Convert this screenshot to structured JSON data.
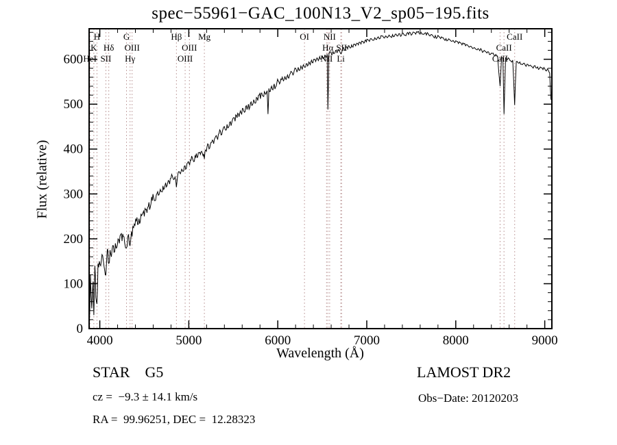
{
  "title": "spec−55961−GAC_100N13_V2_sp05−195.fits",
  "footer": {
    "class_label": "STAR    G5",
    "survey": "LAMOST DR2",
    "cz": "cz =  −9.3 ± 14.1 km/s",
    "obs_date": "Obs−Date: 20120203",
    "ra_dec": "RA =  99.96251, DEC =  12.28323"
  },
  "chart_data": {
    "type": "line",
    "title": "spec−55961−GAC_100N13_V2_sp05−195.fits",
    "xlabel": "Wavelength (Å)",
    "ylabel": "Flux (relative)",
    "xlim": [
      3880,
      9080
    ],
    "ylim": [
      0,
      668
    ],
    "x_ticks": [
      4000,
      5000,
      6000,
      7000,
      8000,
      9000
    ],
    "y_ticks": [
      0,
      100,
      200,
      300,
      400,
      500,
      600
    ],
    "x_minor_step": 200,
    "y_minor_step": 20,
    "grid": false,
    "line_color": "#000000",
    "marker_line_color": "#b38989",
    "noise_profile": [
      {
        "until": 4600,
        "amp": 14
      },
      {
        "until": 6000,
        "amp": 8
      },
      {
        "until": 9999,
        "amp": 4
      }
    ],
    "line_markers": [
      {
        "label": "HeI",
        "wavelength": 3889,
        "row": 2
      },
      {
        "label": "K",
        "wavelength": 3933,
        "row": 1
      },
      {
        "label": "H",
        "wavelength": 3968,
        "row": 0
      },
      {
        "label": "SII",
        "wavelength": 4068,
        "row": 2
      },
      {
        "label": "Hδ",
        "wavelength": 4101,
        "row": 1
      },
      {
        "label": "G",
        "wavelength": 4300,
        "row": 0
      },
      {
        "label": "Hγ",
        "wavelength": 4340,
        "row": 2
      },
      {
        "label": "OIII",
        "wavelength": 4363,
        "row": 1
      },
      {
        "label": "Hβ",
        "wavelength": 4861,
        "row": 0
      },
      {
        "label": "OIII",
        "wavelength": 4959,
        "row": 2
      },
      {
        "label": "OIII",
        "wavelength": 5007,
        "row": 1
      },
      {
        "label": "Mg",
        "wavelength": 5175,
        "row": 0
      },
      {
        "label": "OI",
        "wavelength": 6300,
        "row": 0
      },
      {
        "label": "NII",
        "wavelength": 6548,
        "row": 2
      },
      {
        "label": "Hα",
        "wavelength": 6563,
        "row": 1
      },
      {
        "label": "NII",
        "wavelength": 6583,
        "row": 0
      },
      {
        "label": "Li",
        "wavelength": 6708,
        "row": 2
      },
      {
        "label": "SII",
        "wavelength": 6717,
        "row": 1
      },
      {
        "label": "CaII",
        "wavelength": 8498,
        "row": 2
      },
      {
        "label": "CaII",
        "wavelength": 8542,
        "row": 1
      },
      {
        "label": "CaII",
        "wavelength": 8662,
        "row": 0
      }
    ],
    "points": [
      [
        3882,
        8
      ],
      [
        3895,
        120
      ],
      [
        3910,
        45
      ],
      [
        3925,
        105
      ],
      [
        3933,
        30
      ],
      [
        3945,
        140
      ],
      [
        3955,
        70
      ],
      [
        3968,
        55
      ],
      [
        3980,
        145
      ],
      [
        3995,
        150
      ],
      [
        4010,
        140
      ],
      [
        4025,
        165
      ],
      [
        4040,
        150
      ],
      [
        4055,
        130
      ],
      [
        4068,
        120
      ],
      [
        4080,
        165
      ],
      [
        4090,
        175
      ],
      [
        4101,
        145
      ],
      [
        4115,
        175
      ],
      [
        4130,
        160
      ],
      [
        4145,
        185
      ],
      [
        4160,
        170
      ],
      [
        4175,
        190
      ],
      [
        4190,
        180
      ],
      [
        4205,
        200
      ],
      [
        4220,
        190
      ],
      [
        4235,
        210
      ],
      [
        4250,
        195
      ],
      [
        4265,
        205
      ],
      [
        4280,
        190
      ],
      [
        4300,
        180
      ],
      [
        4315,
        205
      ],
      [
        4330,
        195
      ],
      [
        4340,
        185
      ],
      [
        4355,
        215
      ],
      [
        4363,
        205
      ],
      [
        4380,
        225
      ],
      [
        4395,
        230
      ],
      [
        4410,
        240
      ],
      [
        4425,
        232
      ],
      [
        4440,
        245
      ],
      [
        4455,
        238
      ],
      [
        4470,
        252
      ],
      [
        4485,
        258
      ],
      [
        4500,
        250
      ],
      [
        4515,
        265
      ],
      [
        4530,
        258
      ],
      [
        4545,
        272
      ],
      [
        4560,
        265
      ],
      [
        4575,
        278
      ],
      [
        4590,
        285
      ],
      [
        4605,
        292
      ],
      [
        4620,
        285
      ],
      [
        4635,
        298
      ],
      [
        4650,
        305
      ],
      [
        4665,
        298
      ],
      [
        4680,
        310
      ],
      [
        4695,
        305
      ],
      [
        4710,
        318
      ],
      [
        4725,
        312
      ],
      [
        4740,
        325
      ],
      [
        4755,
        318
      ],
      [
        4770,
        330
      ],
      [
        4785,
        322
      ],
      [
        4800,
        335
      ],
      [
        4815,
        340
      ],
      [
        4830,
        332
      ],
      [
        4845,
        338
      ],
      [
        4861,
        315
      ],
      [
        4875,
        342
      ],
      [
        4890,
        350
      ],
      [
        4905,
        345
      ],
      [
        4920,
        355
      ],
      [
        4935,
        350
      ],
      [
        4950,
        362
      ],
      [
        4965,
        355
      ],
      [
        4980,
        368
      ],
      [
        4995,
        372
      ],
      [
        5010,
        365
      ],
      [
        5025,
        375
      ],
      [
        5040,
        380
      ],
      [
        5055,
        372
      ],
      [
        5070,
        385
      ],
      [
        5085,
        390
      ],
      [
        5100,
        382
      ],
      [
        5115,
        392
      ],
      [
        5130,
        388
      ],
      [
        5145,
        395
      ],
      [
        5160,
        385
      ],
      [
        5175,
        378
      ],
      [
        5190,
        398
      ],
      [
        5205,
        405
      ],
      [
        5220,
        410
      ],
      [
        5235,
        402
      ],
      [
        5250,
        415
      ],
      [
        5265,
        420
      ],
      [
        5280,
        412
      ],
      [
        5295,
        425
      ],
      [
        5310,
        430
      ],
      [
        5325,
        422
      ],
      [
        5340,
        435
      ],
      [
        5355,
        440
      ],
      [
        5370,
        432
      ],
      [
        5385,
        445
      ],
      [
        5400,
        450
      ],
      [
        5415,
        442
      ],
      [
        5430,
        455
      ],
      [
        5445,
        448
      ],
      [
        5460,
        460
      ],
      [
        5475,
        452
      ],
      [
        5490,
        465
      ],
      [
        5505,
        470
      ],
      [
        5520,
        462
      ],
      [
        5535,
        475
      ],
      [
        5550,
        480
      ],
      [
        5565,
        472
      ],
      [
        5580,
        485
      ],
      [
        5595,
        478
      ],
      [
        5610,
        490
      ],
      [
        5625,
        482
      ],
      [
        5640,
        495
      ],
      [
        5655,
        488
      ],
      [
        5670,
        500
      ],
      [
        5685,
        492
      ],
      [
        5700,
        505
      ],
      [
        5715,
        498
      ],
      [
        5730,
        510
      ],
      [
        5745,
        502
      ],
      [
        5760,
        515
      ],
      [
        5775,
        508
      ],
      [
        5790,
        520
      ],
      [
        5805,
        512
      ],
      [
        5820,
        525
      ],
      [
        5835,
        518
      ],
      [
        5850,
        528
      ],
      [
        5865,
        522
      ],
      [
        5880,
        530
      ],
      [
        5890,
        478
      ],
      [
        5900,
        535
      ],
      [
        5915,
        528
      ],
      [
        5930,
        540
      ],
      [
        5945,
        532
      ],
      [
        5960,
        545
      ],
      [
        5975,
        538
      ],
      [
        5990,
        548
      ],
      [
        6005,
        552
      ],
      [
        6020,
        545
      ],
      [
        6035,
        556
      ],
      [
        6050,
        560
      ],
      [
        6065,
        552
      ],
      [
        6080,
        562
      ],
      [
        6095,
        555
      ],
      [
        6110,
        565
      ],
      [
        6125,
        558
      ],
      [
        6140,
        568
      ],
      [
        6155,
        572
      ],
      [
        6170,
        565
      ],
      [
        6185,
        575
      ],
      [
        6200,
        580
      ],
      [
        6215,
        572
      ],
      [
        6230,
        582
      ],
      [
        6245,
        575
      ],
      [
        6260,
        585
      ],
      [
        6275,
        578
      ],
      [
        6290,
        588
      ],
      [
        6305,
        582
      ],
      [
        6320,
        590
      ],
      [
        6335,
        585
      ],
      [
        6350,
        594
      ],
      [
        6365,
        588
      ],
      [
        6380,
        598
      ],
      [
        6395,
        592
      ],
      [
        6410,
        600
      ],
      [
        6425,
        595
      ],
      [
        6440,
        603
      ],
      [
        6455,
        597
      ],
      [
        6470,
        606
      ],
      [
        6485,
        600
      ],
      [
        6500,
        608
      ],
      [
        6515,
        603
      ],
      [
        6530,
        610
      ],
      [
        6545,
        605
      ],
      [
        6555,
        612
      ],
      [
        6563,
        488
      ],
      [
        6575,
        612
      ],
      [
        6590,
        616
      ],
      [
        6605,
        610
      ],
      [
        6620,
        618
      ],
      [
        6635,
        613
      ],
      [
        6650,
        620
      ],
      [
        6665,
        615
      ],
      [
        6680,
        622
      ],
      [
        6695,
        618
      ],
      [
        6710,
        612
      ],
      [
        6725,
        620
      ],
      [
        6740,
        626
      ],
      [
        6755,
        620
      ],
      [
        6770,
        628
      ],
      [
        6785,
        623
      ],
      [
        6800,
        630
      ],
      [
        6815,
        625
      ],
      [
        6830,
        632
      ],
      [
        6845,
        627
      ],
      [
        6860,
        634
      ],
      [
        6875,
        630
      ],
      [
        6890,
        636
      ],
      [
        6905,
        632
      ],
      [
        6920,
        638
      ],
      [
        6935,
        634
      ],
      [
        6950,
        640
      ],
      [
        6965,
        636
      ],
      [
        6980,
        642
      ],
      [
        6995,
        638
      ],
      [
        7010,
        644
      ],
      [
        7030,
        640
      ],
      [
        7050,
        646
      ],
      [
        7070,
        642
      ],
      [
        7090,
        648
      ],
      [
        7110,
        644
      ],
      [
        7130,
        650
      ],
      [
        7150,
        646
      ],
      [
        7170,
        652
      ],
      [
        7190,
        648
      ],
      [
        7210,
        652
      ],
      [
        7230,
        648
      ],
      [
        7250,
        654
      ],
      [
        7270,
        650
      ],
      [
        7290,
        655
      ],
      [
        7310,
        651
      ],
      [
        7330,
        656
      ],
      [
        7350,
        652
      ],
      [
        7370,
        657
      ],
      [
        7390,
        653
      ],
      [
        7410,
        658
      ],
      [
        7430,
        654
      ],
      [
        7450,
        658
      ],
      [
        7470,
        655
      ],
      [
        7490,
        659
      ],
      [
        7510,
        656
      ],
      [
        7530,
        660
      ],
      [
        7550,
        656
      ],
      [
        7570,
        660
      ],
      [
        7590,
        657
      ],
      [
        7610,
        660
      ],
      [
        7630,
        656
      ],
      [
        7650,
        658
      ],
      [
        7670,
        654
      ],
      [
        7690,
        657
      ],
      [
        7710,
        652
      ],
      [
        7730,
        655
      ],
      [
        7750,
        650
      ],
      [
        7770,
        653
      ],
      [
        7790,
        648
      ],
      [
        7810,
        651
      ],
      [
        7830,
        646
      ],
      [
        7850,
        648
      ],
      [
        7870,
        644
      ],
      [
        7890,
        646
      ],
      [
        7910,
        642
      ],
      [
        7930,
        644
      ],
      [
        7950,
        640
      ],
      [
        7970,
        642
      ],
      [
        7990,
        637
      ],
      [
        8010,
        640
      ],
      [
        8030,
        635
      ],
      [
        8050,
        637
      ],
      [
        8070,
        632
      ],
      [
        8090,
        634
      ],
      [
        8110,
        630
      ],
      [
        8130,
        632
      ],
      [
        8150,
        627
      ],
      [
        8170,
        629
      ],
      [
        8190,
        624
      ],
      [
        8210,
        626
      ],
      [
        8230,
        622
      ],
      [
        8250,
        624
      ],
      [
        8270,
        619
      ],
      [
        8290,
        621
      ],
      [
        8310,
        617
      ],
      [
        8330,
        618
      ],
      [
        8350,
        614
      ],
      [
        8370,
        616
      ],
      [
        8390,
        611
      ],
      [
        8410,
        613
      ],
      [
        8430,
        609
      ],
      [
        8450,
        611
      ],
      [
        8470,
        607
      ],
      [
        8498,
        540
      ],
      [
        8515,
        606
      ],
      [
        8530,
        602
      ],
      [
        8542,
        478
      ],
      [
        8560,
        603
      ],
      [
        8580,
        599
      ],
      [
        8600,
        601
      ],
      [
        8620,
        596
      ],
      [
        8640,
        598
      ],
      [
        8662,
        498
      ],
      [
        8680,
        595
      ],
      [
        8700,
        592
      ],
      [
        8720,
        594
      ],
      [
        8740,
        589
      ],
      [
        8760,
        591
      ],
      [
        8780,
        587
      ],
      [
        8800,
        589
      ],
      [
        8820,
        585
      ],
      [
        8840,
        587
      ],
      [
        8860,
        583
      ],
      [
        8880,
        585
      ],
      [
        8900,
        581
      ],
      [
        8920,
        583
      ],
      [
        8940,
        579
      ],
      [
        8960,
        581
      ],
      [
        8980,
        577
      ],
      [
        9000,
        579
      ],
      [
        9020,
        574
      ],
      [
        9040,
        576
      ],
      [
        9055,
        570
      ],
      [
        9070,
        510
      ]
    ]
  }
}
